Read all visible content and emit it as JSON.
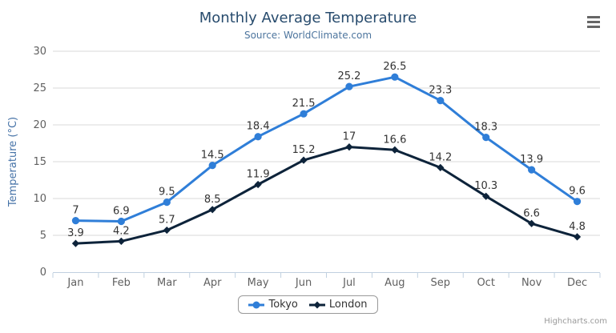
{
  "header": {
    "title": "Monthly Average Temperature",
    "subtitle": "Source: WorldClimate.com"
  },
  "credit": {
    "label": "Highcharts.com"
  },
  "menu": {
    "icon": "hamburger-menu-icon"
  },
  "colors": {
    "title": "#274b6d",
    "subtitle": "#4d759e",
    "axis_title": "#4572a7",
    "axis_labels": "#606060",
    "grid_line": "#d8d8d8",
    "axis_line": "#c0d0e0",
    "data_label": "#333333",
    "tokyo": "#2f7ed8",
    "london": "#0d233a"
  },
  "chart_data": {
    "type": "line",
    "title": "Monthly Average Temperature",
    "subtitle": "Source: WorldClimate.com",
    "categories": [
      "Jan",
      "Feb",
      "Mar",
      "Apr",
      "May",
      "Jun",
      "Jul",
      "Aug",
      "Sep",
      "Oct",
      "Nov",
      "Dec"
    ],
    "series": [
      {
        "name": "Tokyo",
        "color": "#2f7ed8",
        "marker": "circle",
        "values": [
          7,
          6.9,
          9.5,
          14.5,
          18.4,
          21.5,
          25.2,
          26.5,
          23.3,
          18.3,
          13.9,
          9.6
        ]
      },
      {
        "name": "London",
        "color": "#0d233a",
        "marker": "diamond",
        "values": [
          3.9,
          4.2,
          5.7,
          8.5,
          11.9,
          15.2,
          17,
          16.6,
          14.2,
          10.3,
          6.6,
          4.8
        ]
      }
    ],
    "xlabel": "",
    "ylabel": "Temperature (°C)",
    "ylim": [
      0,
      30
    ],
    "yticks": [
      0,
      5,
      10,
      15,
      20,
      25,
      30
    ],
    "grid": true,
    "data_labels": true,
    "legend_position": "bottom"
  }
}
